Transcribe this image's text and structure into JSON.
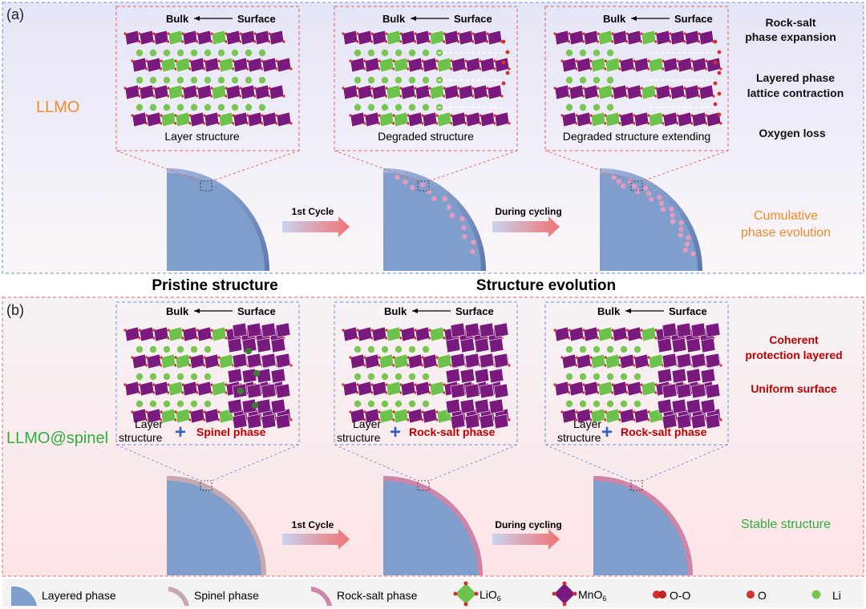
{
  "panel_a": {
    "label": "(a)",
    "material": "LLMO",
    "insets": [
      {
        "bulk": "Bulk",
        "surface": "Surface",
        "caption": "Layer structure"
      },
      {
        "bulk": "Bulk",
        "surface": "Surface",
        "caption": "Degraded structure"
      },
      {
        "bulk": "Bulk",
        "surface": "Surface",
        "caption": "Degraded structure extending"
      }
    ],
    "notes": [
      "Rock-salt",
      "phase expansion",
      "Layered phase",
      "lattice contraction",
      "Oxygen loss"
    ],
    "arrow1": "1st Cycle",
    "arrow2": "During cycling",
    "result_line1": "Cumulative",
    "result_line2": "phase evolution"
  },
  "headings": {
    "left": "Pristine structure",
    "center": "Structure evolution"
  },
  "panel_b": {
    "label": "(b)",
    "material": "LLMO@spinel",
    "insets": [
      {
        "bulk": "Bulk",
        "surface": "Surface",
        "layer1": "Layer",
        "layer2": "structure",
        "plus": "+",
        "phase": "Spinel phase"
      },
      {
        "bulk": "Bulk",
        "surface": "Surface",
        "layer1": "Layer",
        "layer2": "structure",
        "plus": "+",
        "phase": "Rock-salt phase"
      },
      {
        "bulk": "Bulk",
        "surface": "Surface",
        "layer1": "Layer",
        "layer2": "structure",
        "plus": "+",
        "phase": "Rock-salt phase"
      }
    ],
    "notes": [
      "Coherent",
      "protection layered",
      "Uniform surface"
    ],
    "arrow1": "1st Cycle",
    "arrow2": "During cycling",
    "result": "Stable structure"
  },
  "legend": {
    "layered": "Layered phase",
    "spinel": "Spinel phase",
    "rocksalt": "Rock-salt phase",
    "lio6_base": "LiO",
    "lio6_sub": "6",
    "mno6_base": "MnO",
    "mno6_sub": "6",
    "oo": "O-O",
    "o": "O",
    "li": "Li"
  },
  "colors": {
    "layered": "#7f9ecb",
    "spinel": "#c4aab0",
    "rocksalt": "#cf85a8",
    "mn": "#7a1a7e",
    "li_oct": "#6cc24a",
    "li_atom": "#79c653",
    "o_atom": "#d2302c",
    "orange": "#f28c28",
    "green": "#2ab13e",
    "darkred": "#c00000"
  }
}
